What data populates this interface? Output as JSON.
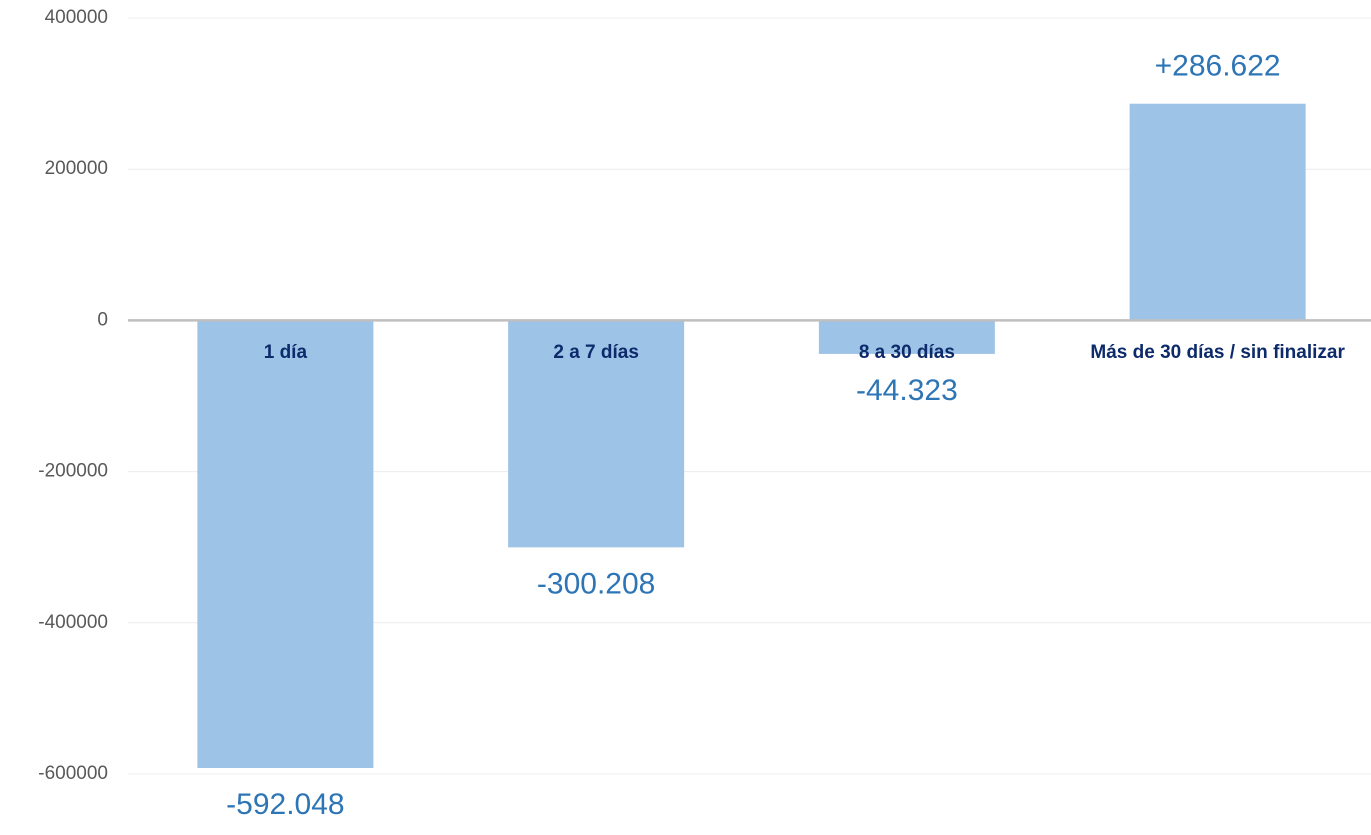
{
  "chart_data": {
    "type": "bar",
    "categories": [
      "1 día",
      "2 a 7 días",
      "8 a 30 días",
      "Más de 30 días / sin finalizar"
    ],
    "values": [
      -592048,
      -300208,
      -44323,
      286622
    ],
    "value_labels": [
      "-592.048",
      "-300.208",
      "-44.323",
      "+286.622"
    ],
    "color": "#9dc3e6",
    "ylim": [
      -600000,
      400000
    ],
    "yticks": [
      -600000,
      -400000,
      -200000,
      0,
      200000,
      400000
    ],
    "grid": true
  }
}
